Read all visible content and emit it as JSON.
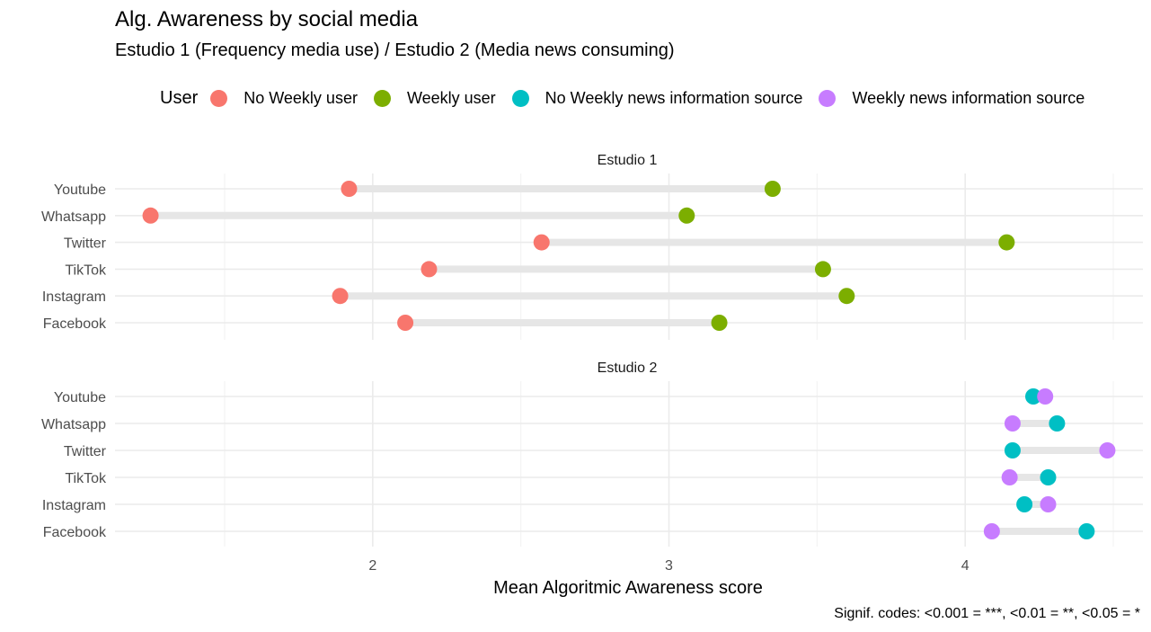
{
  "colors": {
    "no_weekly_user": "#F8766D",
    "weekly_user": "#7CAE00",
    "no_weekly_news": "#00BFC4",
    "weekly_news": "#C77CFF",
    "segment": "#e6e6e6",
    "grid_major": "#ebebeb",
    "grid_minor": "#f4f4f4"
  },
  "legend": {
    "title": "User",
    "items": [
      {
        "label": "No Weekly user",
        "color": "#F8766D"
      },
      {
        "label": "Weekly user",
        "color": "#7CAE00"
      },
      {
        "label": "No Weekly news information source",
        "color": "#00BFC4"
      },
      {
        "label": "Weekly news information source",
        "color": "#C77CFF"
      }
    ],
    "position": "top"
  },
  "caption": "Signif. codes: <0.001 = ***, <0.01 = **, <0.05 = *",
  "chart_data": {
    "type": "dumbbell",
    "title": "Alg. Awareness by social media",
    "subtitle": "Estudio 1 (Frequency media use) / Estudio 2 (Media news consuming)",
    "xlabel": "Mean Algoritmic Awareness score",
    "ylabel": "",
    "xlim": [
      1.13,
      4.6
    ],
    "xticks": [
      2,
      3,
      4
    ],
    "grid": true,
    "categories": [
      "Youtube",
      "Whatsapp",
      "Twitter",
      "TikTok",
      "Instagram",
      "Facebook"
    ],
    "panels": [
      {
        "name": "Estudio 1",
        "series": [
          {
            "name": "No Weekly user",
            "color": "#F8766D",
            "values": [
              1.92,
              1.25,
              2.57,
              2.19,
              1.89,
              2.11
            ]
          },
          {
            "name": "Weekly user",
            "color": "#7CAE00",
            "values": [
              3.35,
              3.06,
              4.14,
              3.52,
              3.6,
              3.17
            ]
          }
        ]
      },
      {
        "name": "Estudio 2",
        "series": [
          {
            "name": "No Weekly news information source",
            "color": "#00BFC4",
            "values": [
              4.23,
              4.31,
              4.16,
              4.28,
              4.2,
              4.41
            ]
          },
          {
            "name": "Weekly news information source",
            "color": "#C77CFF",
            "values": [
              4.27,
              4.16,
              4.48,
              4.15,
              4.28,
              4.09
            ]
          }
        ]
      }
    ]
  }
}
